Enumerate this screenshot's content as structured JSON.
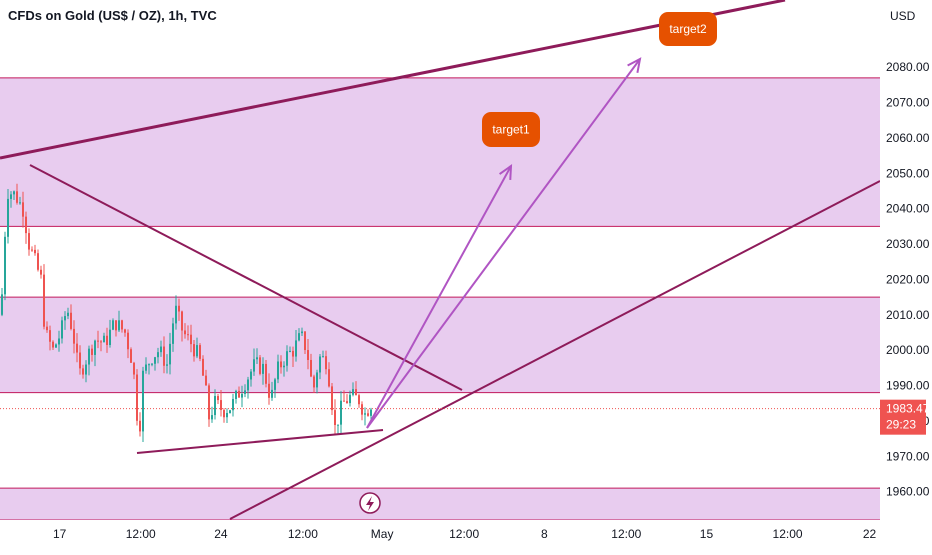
{
  "chart_title": "CFDs on Gold (US$ / OZ), 1h, TVC",
  "currency": "USD",
  "chart_data": {
    "type": "candlestick",
    "ylim": [
      1952,
      2099
    ],
    "y_ticks": [
      1960.0,
      1970.0,
      1980.0,
      1990.0,
      2000.0,
      2010.0,
      2020.0,
      2030.0,
      2040.0,
      2050.0,
      2060.0,
      2070.0,
      2080.0
    ],
    "x_ticks": [
      {
        "label": "17",
        "pos": 0.064
      },
      {
        "label": "12:00",
        "pos": 0.151
      },
      {
        "label": "24",
        "pos": 0.237
      },
      {
        "label": "12:00",
        "pos": 0.325
      },
      {
        "label": "May",
        "pos": 0.41
      },
      {
        "label": "12:00",
        "pos": 0.498
      },
      {
        "label": "8",
        "pos": 0.584
      },
      {
        "label": "12:00",
        "pos": 0.672
      },
      {
        "label": "15",
        "pos": 0.758
      },
      {
        "label": "12:00",
        "pos": 0.845
      },
      {
        "label": "22",
        "pos": 0.933
      }
    ],
    "current_price": "1983.47",
    "countdown": "29:23",
    "zones": [
      {
        "low": 2035,
        "high": 2077
      },
      {
        "low": 1988,
        "high": 2015
      },
      {
        "low": 1952,
        "high": 1961
      }
    ],
    "annotations": [
      {
        "label": "target1",
        "price": 2061
      },
      {
        "label": "target2",
        "price": 2087
      }
    ],
    "colors": {
      "up": "#26a69a",
      "down": "#ef5350",
      "zone_fill": "#e8ccef",
      "zone_line": "#c2185b",
      "trendline": "#8e1b5a",
      "arrow": "#b055c3",
      "bubble": "#e65100",
      "price_label": "#ef5350"
    }
  }
}
